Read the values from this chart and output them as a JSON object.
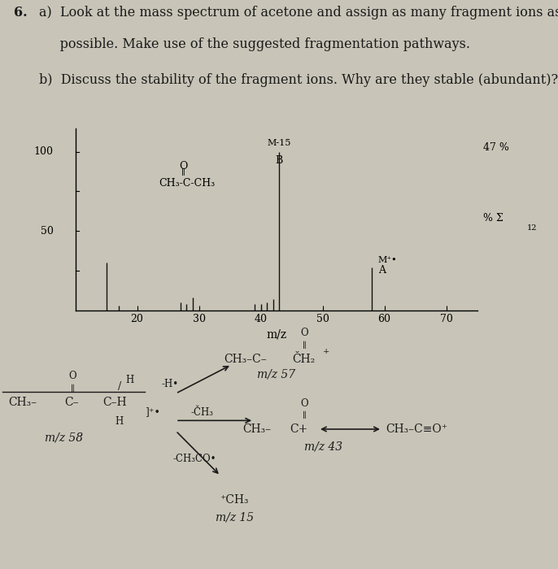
{
  "bg_color": "#c8c5b8",
  "text_color": "#1a1a1a",
  "question_number": "6.",
  "line_a1": "a)  Look at the mass spectrum of acetone and assign as many fragment ions as",
  "line_a2": "     possible. Make use of the suggested fragmentation pathways.",
  "line_b": "b)  Discuss the stability of the fragment ions. Why are they stable (abundant)?",
  "ylabel_100": "100",
  "ylabel_50": "50",
  "xlabel": "m/z",
  "xtick_labels": [
    "20",
    "30",
    "40",
    "50",
    "60",
    "70"
  ],
  "xtick_vals": [
    20,
    30,
    40,
    50,
    60,
    70
  ],
  "xlim": [
    10,
    75
  ],
  "ylim": [
    0,
    115
  ],
  "peaks_mz": [
    15,
    17,
    27,
    28,
    29,
    39,
    40,
    41,
    42,
    43,
    58
  ],
  "peaks_intensity": [
    30,
    3,
    5,
    4,
    8,
    4,
    4,
    5,
    7,
    100,
    27
  ],
  "ann_M15_x": 43,
  "ann_M15_y": 100,
  "ann_A_x": 58,
  "ann_A_y": 27,
  "right_label_47": "47 %",
  "right_label_sig": "% Σ",
  "right_label_12": "12"
}
